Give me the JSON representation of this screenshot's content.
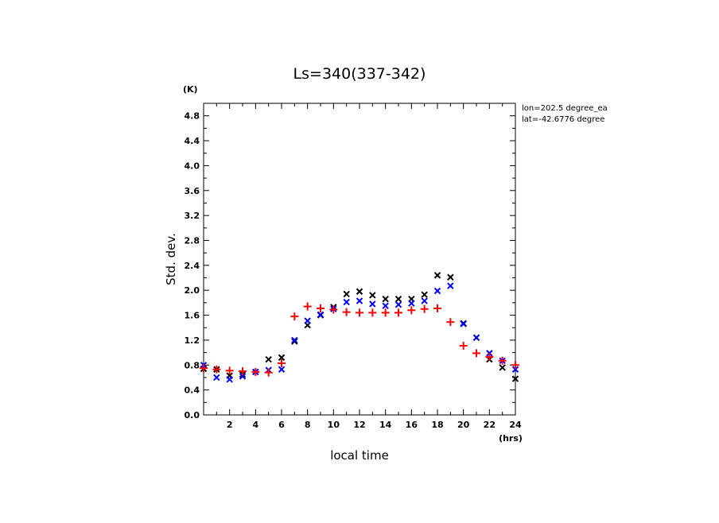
{
  "chart_data": {
    "type": "scatter",
    "title": "Ls=340(337-342)",
    "xlabel": "local time",
    "ylabel": "Std. dev.",
    "x_unit": "(hrs)",
    "y_unit": "(K)",
    "xlim": [
      0,
      24
    ],
    "ylim": [
      0,
      5.0
    ],
    "xticks": [
      2,
      4,
      6,
      8,
      10,
      12,
      14,
      16,
      18,
      20,
      22,
      24
    ],
    "yticks": [
      0.0,
      0.4,
      0.8,
      1.2,
      1.6,
      2.0,
      2.4,
      2.8,
      3.2,
      3.6,
      4.0,
      4.4,
      4.8
    ],
    "ytick_labels": [
      "0.0",
      "0.4",
      "0.8",
      "1.2",
      "1.6",
      "2.0",
      "2.4",
      "2.8",
      "3.2",
      "3.6",
      "4.0",
      "4.4",
      "4.8"
    ],
    "grid": false,
    "annotations": [
      "lon=202.5 degree_ea",
      "lat=-42.6776 degree"
    ],
    "series": [
      {
        "marker": "x",
        "color": "#000000",
        "x": [
          0,
          1,
          2,
          3,
          4,
          5,
          6,
          7,
          8,
          9,
          10,
          11,
          12,
          13,
          14,
          15,
          16,
          17,
          18,
          19,
          20,
          21,
          22,
          23,
          24
        ],
        "values": [
          0.74,
          0.73,
          0.63,
          0.65,
          0.69,
          0.89,
          0.92,
          1.18,
          1.44,
          1.6,
          1.73,
          1.94,
          1.98,
          1.92,
          1.86,
          1.86,
          1.86,
          1.93,
          2.24,
          2.21,
          1.47,
          1.24,
          0.89,
          0.76,
          0.58
        ]
      },
      {
        "marker": "x",
        "color": "#0000ff",
        "x": [
          0,
          1,
          2,
          3,
          4,
          5,
          6,
          7,
          8,
          9,
          10,
          11,
          12,
          13,
          14,
          15,
          16,
          17,
          18,
          19,
          20,
          21,
          22,
          23,
          24
        ],
        "values": [
          0.8,
          0.6,
          0.57,
          0.62,
          0.69,
          0.72,
          0.73,
          1.2,
          1.51,
          1.61,
          1.7,
          1.81,
          1.83,
          1.78,
          1.75,
          1.77,
          1.79,
          1.83,
          1.99,
          2.07,
          1.46,
          1.24,
          0.99,
          0.87,
          0.73
        ]
      },
      {
        "marker": "+",
        "color": "#ff0000",
        "x": [
          0,
          1,
          2,
          3,
          4,
          5,
          6,
          7,
          8,
          9,
          10,
          11,
          12,
          13,
          14,
          15,
          16,
          17,
          18,
          19,
          20,
          21,
          22,
          23,
          24
        ],
        "values": [
          0.75,
          0.73,
          0.71,
          0.7,
          0.69,
          0.68,
          0.83,
          1.58,
          1.74,
          1.71,
          1.69,
          1.65,
          1.64,
          1.64,
          1.64,
          1.64,
          1.68,
          1.7,
          1.71,
          1.49,
          1.11,
          0.99,
          0.93,
          0.87,
          0.8
        ]
      }
    ]
  }
}
